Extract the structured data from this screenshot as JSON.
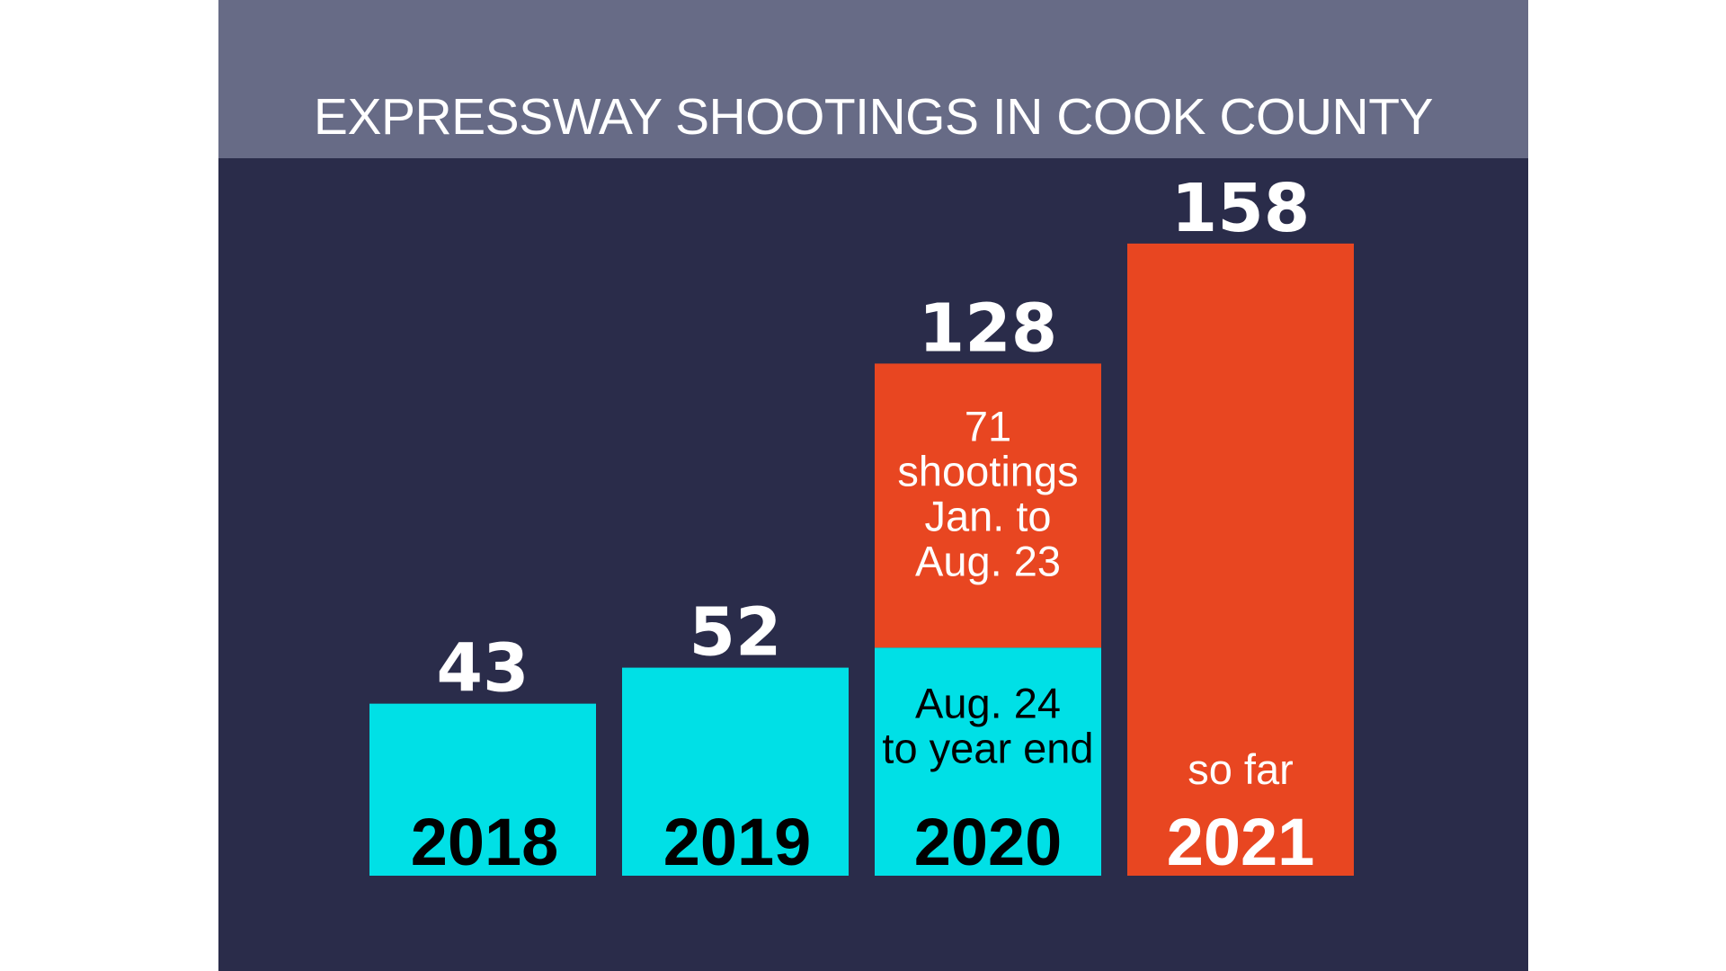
{
  "chart_data": {
    "type": "bar",
    "title": "EXPRESSWAY SHOOTINGS IN COOK COUNTY",
    "categories": [
      "2018",
      "2019",
      "2020",
      "2021"
    ],
    "totals": [
      "43",
      "52",
      "128",
      "158"
    ],
    "series": [
      {
        "values": [
          43,
          52,
          57,
          0
        ],
        "color": "#00e0e6"
      },
      {
        "values": [
          0,
          0,
          71,
          158
        ],
        "color": "#e84621"
      }
    ],
    "annotations": [
      {
        "category": "2020",
        "lines": [
          "71",
          "shootings",
          "Jan. to",
          "Aug. 23"
        ]
      },
      {
        "category": "2020",
        "lines": [
          "Aug. 24",
          "to year end"
        ]
      },
      {
        "category": "2021",
        "lines": [
          "so far"
        ]
      }
    ],
    "ylim": [
      0,
      160
    ],
    "grid": false,
    "legend": "none"
  },
  "colors": {
    "background": "#2a2c4a",
    "title_band": "#676b86",
    "cyan": "#00e0e6",
    "orange": "#e84621",
    "text_light": "#ffffff",
    "text_dark": "#000000"
  }
}
